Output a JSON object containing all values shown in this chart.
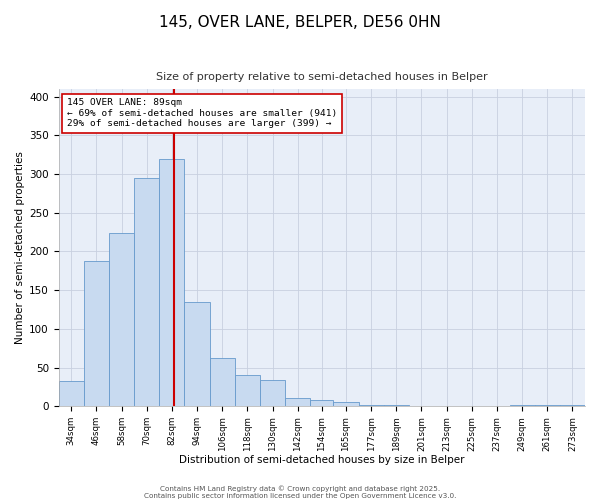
{
  "title": "145, OVER LANE, BELPER, DE56 0HN",
  "subtitle": "Size of property relative to semi-detached houses in Belper",
  "xlabel": "Distribution of semi-detached houses by size in Belper",
  "ylabel": "Number of semi-detached properties",
  "annotation_line1": "145 OVER LANE: 89sqm",
  "annotation_line2": "← 69% of semi-detached houses are smaller (941)",
  "annotation_line3": "29% of semi-detached houses are larger (399) →",
  "bar_left_edges": [
    34,
    46,
    58,
    70,
    82,
    94,
    106,
    118,
    130,
    142,
    154,
    165,
    177,
    189,
    201,
    213,
    225,
    237,
    249,
    261,
    273
  ],
  "bar_right_edges": [
    46,
    58,
    70,
    82,
    94,
    106,
    118,
    130,
    142,
    154,
    165,
    177,
    189,
    201,
    213,
    225,
    237,
    249,
    261,
    273,
    285
  ],
  "bar_heights": [
    32,
    188,
    224,
    295,
    320,
    135,
    62,
    40,
    34,
    10,
    8,
    5,
    2,
    2,
    0,
    0,
    0,
    0,
    2,
    1,
    2
  ],
  "tick_labels": [
    "34sqm",
    "46sqm",
    "58sqm",
    "70sqm",
    "82sqm",
    "94sqm",
    "106sqm",
    "118sqm",
    "130sqm",
    "142sqm",
    "154sqm",
    "165sqm",
    "177sqm",
    "189sqm",
    "201sqm",
    "213sqm",
    "225sqm",
    "237sqm",
    "249sqm",
    "261sqm",
    "273sqm"
  ],
  "bar_color": "#c8daf0",
  "bar_edge_color": "#6699cc",
  "vline_x": 89,
  "vline_color": "#cc0000",
  "ylim": [
    0,
    410
  ],
  "xlim": [
    34,
    285
  ],
  "background_color": "#ffffff",
  "plot_bg_color": "#e8eef8",
  "grid_color": "#c8d0e0",
  "footnote1": "Contains HM Land Registry data © Crown copyright and database right 2025.",
  "footnote2": "Contains public sector information licensed under the Open Government Licence v3.0."
}
